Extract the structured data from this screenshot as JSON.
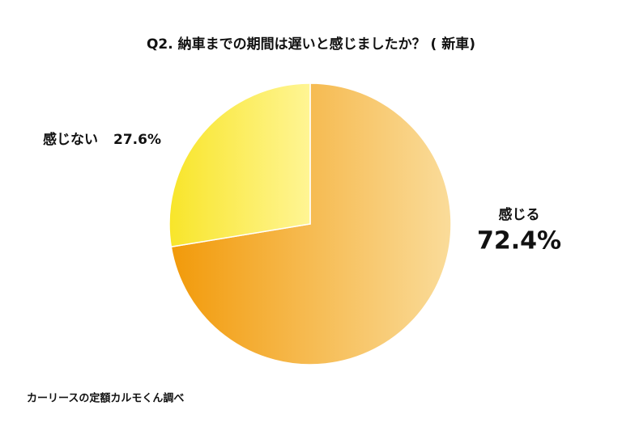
{
  "chart_data": {
    "type": "pie",
    "title": "Q2. 納車までの期間は遅いと感じましたか？ ( 新車)",
    "categories": [
      "感じる",
      "感じない"
    ],
    "values": [
      72.4,
      27.6
    ],
    "value_labels": [
      "72.4%",
      "27.6%"
    ],
    "colors": [
      "#f29a0a",
      "#f8e52a"
    ],
    "gradient_end_colors": [
      "#fadc9a",
      "#fff594"
    ],
    "source": "カーリースの定額カルモくん調べ"
  }
}
